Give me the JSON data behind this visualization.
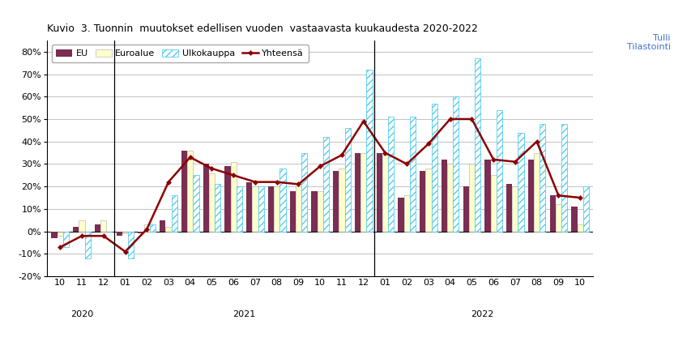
{
  "title": "Kuvio  3. Tuonnin  muutokset edellisen vuoden  vastaavasta kuukaudesta 2020-2022",
  "watermark": "Tulli\nTilastointi",
  "labels": [
    "10",
    "11",
    "12",
    "01",
    "02",
    "03",
    "04",
    "05",
    "06",
    "07",
    "08",
    "09",
    "10",
    "11",
    "12",
    "01",
    "02",
    "03",
    "04",
    "05",
    "06",
    "07",
    "08",
    "09",
    "10"
  ],
  "separators": [
    2.5,
    14.5
  ],
  "EU": [
    -3,
    2,
    3,
    -2,
    -1,
    5,
    36,
    30,
    29,
    22,
    20,
    18,
    18,
    27,
    35,
    35,
    15,
    27,
    32,
    20,
    32,
    21,
    32,
    16,
    11
  ],
  "Euroalue": [
    -2,
    5,
    5,
    -1,
    3,
    2,
    36,
    26,
    31,
    20,
    20,
    20,
    18,
    28,
    35,
    34,
    16,
    28,
    30,
    30,
    25,
    20,
    35,
    12,
    3
  ],
  "Ulkokauppa": [
    -7,
    -12,
    0,
    -12,
    3,
    16,
    25,
    21,
    20,
    20,
    28,
    35,
    42,
    46,
    72,
    51,
    51,
    57,
    60,
    77,
    54,
    44,
    48,
    48,
    20
  ],
  "Yhteensa": [
    -7,
    -2,
    -2,
    -9,
    1,
    22,
    33,
    28,
    25,
    22,
    22,
    21,
    29,
    34,
    49,
    35,
    30,
    39,
    50,
    50,
    32,
    31,
    40,
    16,
    15
  ],
  "ylim": [
    -20,
    85
  ],
  "yticks": [
    -20,
    -10,
    0,
    10,
    20,
    30,
    40,
    50,
    60,
    70,
    80
  ],
  "bar_width": 0.27,
  "color_EU": "#7B2D52",
  "color_Euroalue": "#FFFFCC",
  "color_line": "#8B0000",
  "grid_color": "#AAAAAA",
  "title_fontsize": 9,
  "axis_fontsize": 8,
  "legend_fontsize": 8
}
